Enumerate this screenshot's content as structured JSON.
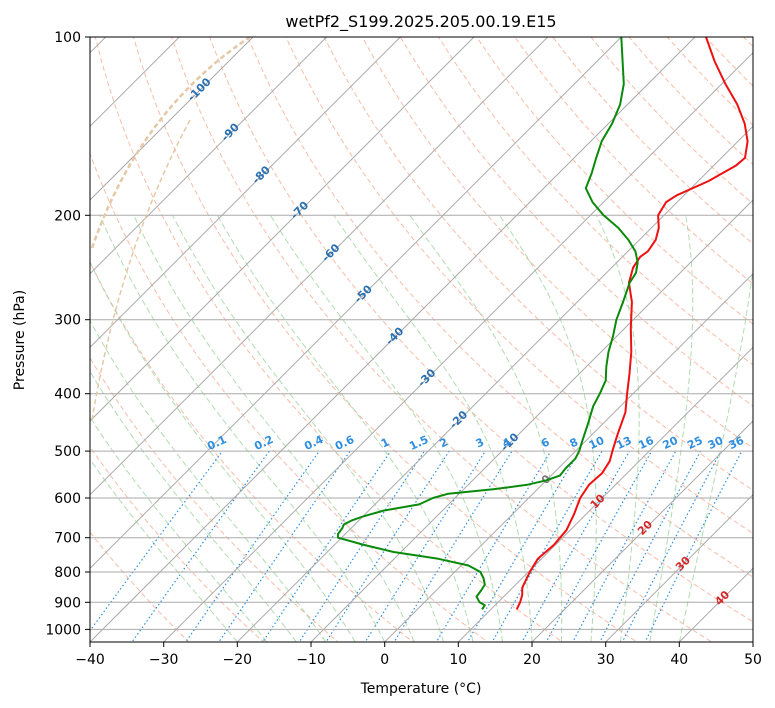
{
  "chart_data": {
    "type": "line",
    "title": "wetPf2_S199.2025.205.00.19.E15",
    "xlabel": "Temperature (°C)",
    "ylabel": "Pressure (hPa)",
    "xlim": [
      -40,
      50
    ],
    "ylim": [
      1050,
      100
    ],
    "y_scale": "log",
    "x_ticks": [
      -40,
      -30,
      -20,
      -10,
      0,
      10,
      20,
      30,
      40,
      50
    ],
    "y_ticks": [
      100,
      200,
      300,
      400,
      500,
      600,
      700,
      800,
      900,
      1000
    ],
    "grid": true,
    "skew_deg": 45,
    "colors": {
      "temperature": "#ee1111",
      "dewpoint": "#0a8a0a",
      "isotherm": "#aaaaaa",
      "isobar": "#aaaaaa",
      "dry_adiabat": "#f6a58b",
      "moist_adiabat": "#9fd39f",
      "mixing_ratio": "#2e8fe0",
      "isotherm_label": "#2a70b0",
      "warm_label": "#d62728",
      "zero_label": "#777777",
      "theta_e_curve": "#e3c9a6"
    },
    "series": [
      {
        "key": "temperature",
        "points": [
          {
            "p": 925,
            "t": 13.5
          },
          {
            "p": 900,
            "t": 13.0
          },
          {
            "p": 875,
            "t": 12.3
          },
          {
            "p": 850,
            "t": 11.3
          },
          {
            "p": 800,
            "t": 10.2
          },
          {
            "p": 760,
            "t": 9.5
          },
          {
            "p": 720,
            "t": 9.8
          },
          {
            "p": 680,
            "t": 9.5
          },
          {
            "p": 640,
            "t": 8.4
          },
          {
            "p": 600,
            "t": 7.0
          },
          {
            "p": 570,
            "t": 6.4
          },
          {
            "p": 545,
            "t": 6.6
          },
          {
            "p": 520,
            "t": 6.0
          },
          {
            "p": 500,
            "t": 5.0
          },
          {
            "p": 470,
            "t": 3.5
          },
          {
            "p": 430,
            "t": 1.5
          },
          {
            "p": 400,
            "t": -0.8
          },
          {
            "p": 370,
            "t": -3.2
          },
          {
            "p": 340,
            "t": -5.9
          },
          {
            "p": 310,
            "t": -9.2
          },
          {
            "p": 280,
            "t": -12.6
          },
          {
            "p": 260,
            "t": -15.6
          },
          {
            "p": 245,
            "t": -17.1
          },
          {
            "p": 235,
            "t": -17.6
          },
          {
            "p": 230,
            "t": -17.3
          },
          {
            "p": 220,
            "t": -17.8
          },
          {
            "p": 210,
            "t": -19.0
          },
          {
            "p": 200,
            "t": -20.8
          },
          {
            "p": 190,
            "t": -21.5
          },
          {
            "p": 185,
            "t": -21.0
          },
          {
            "p": 175,
            "t": -18.6
          },
          {
            "p": 165,
            "t": -17.0
          },
          {
            "p": 160,
            "t": -16.8
          },
          {
            "p": 150,
            "t": -18.7
          },
          {
            "p": 140,
            "t": -21.5
          },
          {
            "p": 130,
            "t": -25.1
          },
          {
            "p": 120,
            "t": -29.5
          },
          {
            "p": 110,
            "t": -34.0
          },
          {
            "p": 100,
            "t": -38.5
          }
        ]
      },
      {
        "key": "dewpoint",
        "points": [
          {
            "p": 925,
            "t": 8.8
          },
          {
            "p": 910,
            "t": 8.6
          },
          {
            "p": 900,
            "t": 7.5
          },
          {
            "p": 880,
            "t": 6.3
          },
          {
            "p": 860,
            "t": 6.1
          },
          {
            "p": 840,
            "t": 5.8
          },
          {
            "p": 820,
            "t": 4.8
          },
          {
            "p": 800,
            "t": 3.5
          },
          {
            "p": 780,
            "t": 1.0
          },
          {
            "p": 760,
            "t": -4.0
          },
          {
            "p": 740,
            "t": -11.0
          },
          {
            "p": 720,
            "t": -16.0
          },
          {
            "p": 700,
            "t": -20.5
          },
          {
            "p": 690,
            "t": -21.0
          },
          {
            "p": 675,
            "t": -21.2
          },
          {
            "p": 665,
            "t": -21.5
          },
          {
            "p": 655,
            "t": -21.0
          },
          {
            "p": 645,
            "t": -20.0
          },
          {
            "p": 630,
            "t": -18.0
          },
          {
            "p": 615,
            "t": -14.0
          },
          {
            "p": 600,
            "t": -13.0
          },
          {
            "p": 590,
            "t": -11.5
          },
          {
            "p": 580,
            "t": -6.0
          },
          {
            "p": 570,
            "t": -2.0
          },
          {
            "p": 560,
            "t": 0.0
          },
          {
            "p": 550,
            "t": 1.2
          },
          {
            "p": 535,
            "t": 1.0
          },
          {
            "p": 515,
            "t": 1.0
          },
          {
            "p": 500,
            "t": 0.5
          },
          {
            "p": 480,
            "t": -0.5
          },
          {
            "p": 450,
            "t": -2.0
          },
          {
            "p": 420,
            "t": -3.7
          },
          {
            "p": 400,
            "t": -4.5
          },
          {
            "p": 380,
            "t": -5.5
          },
          {
            "p": 360,
            "t": -7.3
          },
          {
            "p": 340,
            "t": -9.0
          },
          {
            "p": 320,
            "t": -10.5
          },
          {
            "p": 300,
            "t": -12.3
          },
          {
            "p": 280,
            "t": -13.8
          },
          {
            "p": 260,
            "t": -15.5
          },
          {
            "p": 250,
            "t": -16.0
          },
          {
            "p": 240,
            "t": -17.2
          },
          {
            "p": 230,
            "t": -19.0
          },
          {
            "p": 220,
            "t": -21.5
          },
          {
            "p": 210,
            "t": -24.5
          },
          {
            "p": 200,
            "t": -28.2
          },
          {
            "p": 190,
            "t": -31.5
          },
          {
            "p": 180,
            "t": -34.3
          },
          {
            "p": 170,
            "t": -35.5
          },
          {
            "p": 160,
            "t": -37.0
          },
          {
            "p": 150,
            "t": -38.5
          },
          {
            "p": 140,
            "t": -39.5
          },
          {
            "p": 130,
            "t": -41.0
          },
          {
            "p": 120,
            "t": -43.3
          },
          {
            "p": 110,
            "t": -46.5
          },
          {
            "p": 100,
            "t": -50.0
          }
        ]
      }
    ],
    "isotherm_labels": [
      "-100",
      "-90",
      "-80",
      "-70",
      "-60",
      "-50",
      "-40",
      "-30",
      "-20",
      "-10",
      "0",
      "10",
      "20",
      "30",
      "40"
    ],
    "mixing_ratio_labels": [
      "0.1",
      "0.2",
      "0.4",
      "0.6",
      "1",
      "1.5",
      "2",
      "3",
      "4",
      "6",
      "8",
      "10",
      "13",
      "16",
      "20",
      "25",
      "30",
      "36"
    ]
  }
}
